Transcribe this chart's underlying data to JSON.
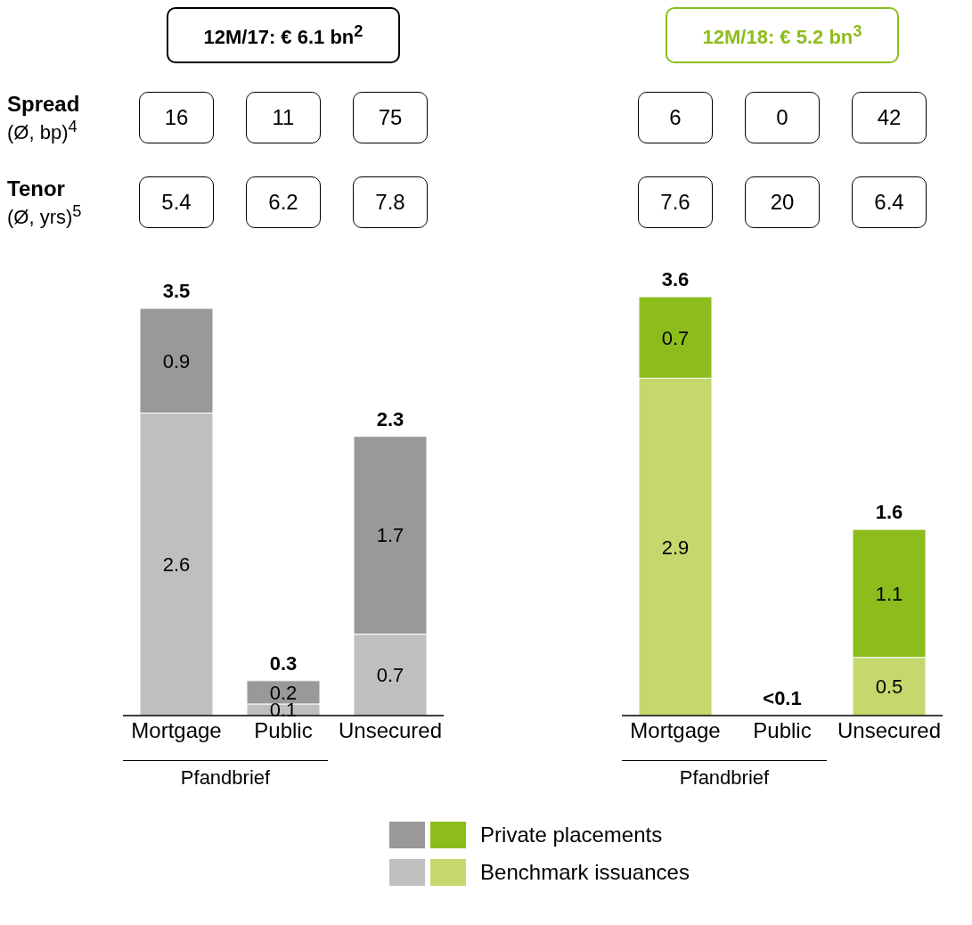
{
  "chart_data": [
    {
      "type": "bar",
      "title": "12M/17: € 6.1 bn$^{2}$",
      "categories": [
        "Mortgage",
        "Public",
        "Unsecured"
      ],
      "stacked": true,
      "data_labels": true,
      "legend": "bottom",
      "series": [
        {
          "name": "Benchmark issuances",
          "color": "#bfbfbf",
          "values": [
            2.6,
            0.1,
            0.7
          ]
        },
        {
          "name": "Private placements",
          "color": "#999999",
          "values": [
            0.9,
            0.2,
            1.7
          ]
        }
      ],
      "totals": [
        "3.5",
        "0.3",
        "2.3"
      ],
      "annotations": [
        "Spread",
        "(Ø, bp)$^{4}$",
        "Tenor",
        "(Ø, yrs)$^{5}$",
        "16",
        "11",
        "75",
        "5.4",
        "6.2",
        "7.8",
        "Pfandbrief"
      ]
    },
    {
      "type": "bar",
      "title": "12M/18: € 5.2 bn$^{3}$",
      "categories": [
        "Mortgage",
        "Public",
        "Unsecured"
      ],
      "stacked": true,
      "data_labels": true,
      "series": [
        {
          "color": "#c4d86e",
          "values": [
            2.9,
            null,
            0.5
          ]
        },
        {
          "color": "#8cbd1c",
          "values": [
            0.7,
            null,
            1.1
          ]
        }
      ],
      "totals": [
        "3.6",
        "<0.1",
        "1.6"
      ],
      "annotations": [
        "6",
        "0",
        "42",
        "7.6",
        "20",
        "6.4",
        "Pfandbrief"
      ]
    }
  ]
}
